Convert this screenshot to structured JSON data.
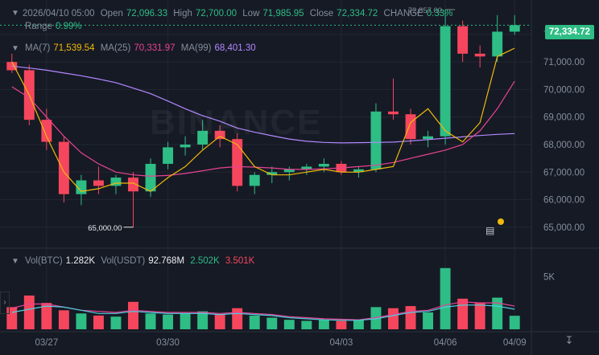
{
  "header": {
    "datetime": "2026/04/10 05:00",
    "open_label": "Open",
    "open": "72,096.33",
    "high_label": "High",
    "high": "72,700.00",
    "low_label": "Low",
    "low": "71,985.95",
    "close_label": "Close",
    "close": "72,334.72",
    "change_label": "CHANGE",
    "change": "0.33%",
    "range_label": "Range",
    "range": "0.99%"
  },
  "ma_legend": {
    "ma7_label": "MA(7)",
    "ma7": "71,539.54",
    "ma25_label": "MA(25)",
    "ma25": "70,331.97",
    "ma99_label": "MA(99)",
    "ma99": "68,401.30"
  },
  "vol_legend": {
    "vol_btc_label": "Vol(BTC)",
    "vol_btc": "1.282K",
    "vol_usdt_label": "Vol(USDT)",
    "vol_usdt": "92.768M",
    "vol_usdt_green": "2.502K",
    "vol_usdt_red": "3.501K"
  },
  "current_price_tag": "72,334.72",
  "watermark": "BINANCE",
  "colors": {
    "up": "#2ebd85",
    "down": "#f6465d",
    "ma7": "#f0b90b",
    "ma25": "#e84393",
    "ma99": "#b388ff",
    "vol_ma_fast": "#e84393",
    "vol_ma_slow": "#4dd0e1",
    "grid": "#222733",
    "bg": "#161a25"
  },
  "chart_data": {
    "type": "candlestick",
    "symbol": "BTC/USDT",
    "price_axis": {
      "ylim": [
        64500,
        72900
      ],
      "ticks": [
        65000,
        66000,
        67000,
        68000,
        69000,
        70000,
        71000,
        72000
      ],
      "tick_labels": [
        "65,000.00",
        "66,000.00",
        "67,000.00",
        "68,000.00",
        "69,000.00",
        "70,000.00",
        "71,000.00",
        "72,000.00"
      ]
    },
    "volume_axis": {
      "ylim": [
        0,
        7000
      ],
      "ticks": [
        5000
      ],
      "tick_labels": [
        "5K"
      ]
    },
    "date_labels": [
      "03/27",
      "03/30",
      "04/03",
      "04/06",
      "04/09"
    ],
    "annotations": {
      "high_marker": "72,857.00",
      "low_marker": "65,000.00"
    },
    "ma99": [
      70850,
      70780,
      70700,
      70600,
      70500,
      70380,
      70250,
      70050,
      69850,
      69580,
      69300,
      69050,
      68850,
      68600,
      68450,
      68320,
      68200,
      68120,
      68080,
      68060,
      68070,
      68080,
      68090,
      68130,
      68180,
      68230,
      68280,
      68330,
      68370,
      68400
    ],
    "ma25": [
      70100,
      69700,
      69000,
      68300,
      67700,
      67300,
      67000,
      66900,
      66850,
      66880,
      66950,
      67050,
      67150,
      67200,
      67180,
      67150,
      67100,
      67100,
      67120,
      67150,
      67200,
      67250,
      67350,
      67500,
      67650,
      67800,
      68000,
      68500,
      69300,
      70300
    ],
    "ma7": [
      71000,
      69800,
      68300,
      67000,
      66300,
      66400,
      66600,
      66600,
      66300,
      66800,
      67200,
      67800,
      68300,
      68000,
      67200,
      66900,
      66900,
      67000,
      67100,
      67000,
      67000,
      67100,
      67200,
      68800,
      69300,
      68500,
      68100,
      68800,
      71200,
      71500
    ],
    "candles": [
      [
        71000,
        71300,
        70600,
        70700
      ],
      [
        70700,
        70900,
        68700,
        68900
      ],
      [
        68900,
        69300,
        67800,
        68100
      ],
      [
        68100,
        68300,
        65900,
        66200
      ],
      [
        66200,
        66900,
        65800,
        66700
      ],
      [
        66700,
        67200,
        66200,
        66500
      ],
      [
        66500,
        66900,
        66200,
        66800
      ],
      [
        66800,
        67000,
        65000,
        66300
      ],
      [
        66300,
        67500,
        66100,
        67300
      ],
      [
        67300,
        68100,
        67100,
        67900
      ],
      [
        67900,
        68300,
        67600,
        68000
      ],
      [
        68000,
        68900,
        67800,
        68500
      ],
      [
        68500,
        68700,
        67900,
        68200
      ],
      [
        68200,
        68400,
        66300,
        66500
      ],
      [
        66500,
        67000,
        66200,
        66900
      ],
      [
        66900,
        67200,
        66600,
        67000
      ],
      [
        67000,
        67200,
        66700,
        67100
      ],
      [
        67100,
        67300,
        66900,
        67200
      ],
      [
        67200,
        67500,
        67000,
        67300
      ],
      [
        67300,
        67400,
        66900,
        67000
      ],
      [
        67000,
        67200,
        66800,
        67100
      ],
      [
        67100,
        69500,
        67000,
        69200
      ],
      [
        69200,
        70400,
        68900,
        69100
      ],
      [
        69100,
        69300,
        68000,
        68200
      ],
      [
        68200,
        68500,
        67900,
        68300
      ],
      [
        68300,
        72900,
        68000,
        72300
      ],
      [
        72300,
        72500,
        71000,
        71300
      ],
      [
        71300,
        71600,
        70800,
        71200
      ],
      [
        71200,
        72700,
        71000,
        72100
      ],
      [
        72100,
        72700,
        71986,
        72335
      ]
    ],
    "volumes": [
      2100,
      3200,
      2500,
      1800,
      1500,
      1300,
      1200,
      2600,
      1500,
      1400,
      1500,
      1700,
      1400,
      2000,
      1300,
      1100,
      900,
      800,
      900,
      800,
      900,
      2100,
      2000,
      2200,
      1600,
      5800,
      2900,
      2500,
      3000,
      1282
    ],
    "vol_ma_fast": [
      2000,
      2400,
      2400,
      2100,
      1800,
      1700,
      1600,
      1800,
      1700,
      1600,
      1600,
      1600,
      1500,
      1600,
      1500,
      1400,
      1200,
      1100,
      1000,
      950,
      900,
      1100,
      1400,
      1700,
      1800,
      2300,
      2600,
      2500,
      2500,
      2200
    ],
    "vol_ma_slow": [
      1600,
      1900,
      2200,
      2100,
      1800,
      1500,
      1500,
      1700,
      1600,
      1500,
      1500,
      1500,
      1400,
      1500,
      1400,
      1300,
      1100,
      1000,
      900,
      850,
      850,
      1000,
      1300,
      1600,
      1700,
      2100,
      2300,
      2300,
      2200,
      1900
    ]
  }
}
